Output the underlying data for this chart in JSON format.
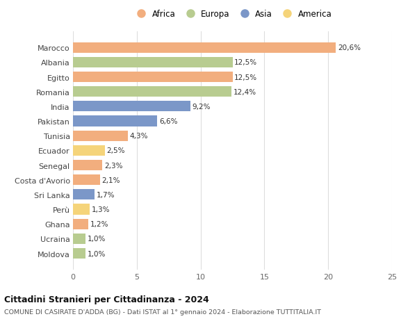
{
  "countries": [
    "Marocco",
    "Albania",
    "Egitto",
    "Romania",
    "India",
    "Pakistan",
    "Tunisia",
    "Ecuador",
    "Senegal",
    "Costa d'Avorio",
    "Sri Lanka",
    "Perù",
    "Ghana",
    "Ucraina",
    "Moldova"
  ],
  "values": [
    20.6,
    12.5,
    12.5,
    12.4,
    9.2,
    6.6,
    4.3,
    2.5,
    2.3,
    2.1,
    1.7,
    1.3,
    1.2,
    1.0,
    1.0
  ],
  "labels": [
    "20,6%",
    "12,5%",
    "12,5%",
    "12,4%",
    "9,2%",
    "6,6%",
    "4,3%",
    "2,5%",
    "2,3%",
    "2,1%",
    "1,7%",
    "1,3%",
    "1,2%",
    "1,0%",
    "1,0%"
  ],
  "continents": [
    "Africa",
    "Europa",
    "Africa",
    "Europa",
    "Asia",
    "Asia",
    "Africa",
    "America",
    "Africa",
    "Africa",
    "Asia",
    "America",
    "Africa",
    "Europa",
    "Europa"
  ],
  "colors": {
    "Africa": "#F2AE7E",
    "Europa": "#B8CC90",
    "Asia": "#7B97C8",
    "America": "#F5D47A"
  },
  "legend_order": [
    "Africa",
    "Europa",
    "Asia",
    "America"
  ],
  "xlim": [
    0,
    25
  ],
  "xticks": [
    0,
    5,
    10,
    15,
    20,
    25
  ],
  "title": "Cittadini Stranieri per Cittadinanza - 2024",
  "subtitle": "COMUNE DI CASIRATE D'ADDA (BG) - Dati ISTAT al 1° gennaio 2024 - Elaborazione TUTTITALIA.IT",
  "bg_color": "#ffffff",
  "bar_height": 0.72,
  "grid_color": "#dddddd"
}
